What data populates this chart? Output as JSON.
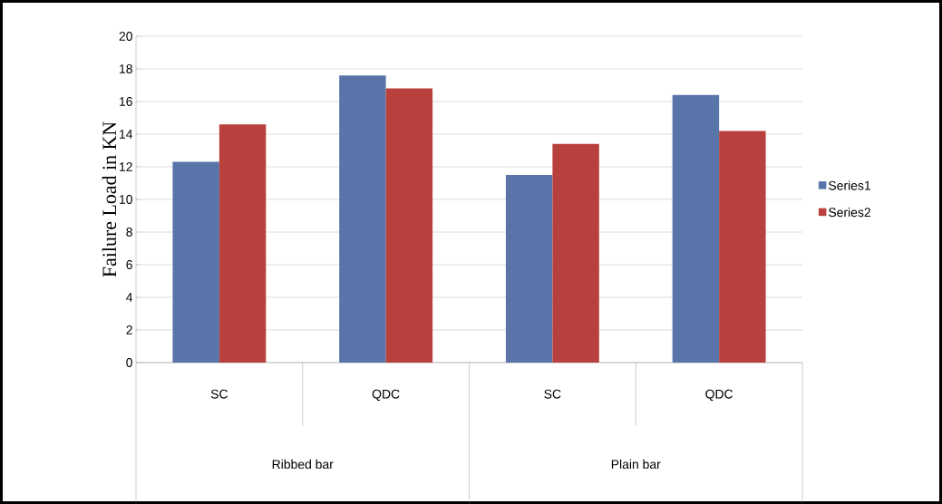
{
  "chart_data": {
    "type": "bar",
    "ylabel": "Failure Load in KN",
    "categories": [
      "SC",
      "QDC",
      "SC",
      "QDC"
    ],
    "series": [
      {
        "name": "Series1",
        "color": "#5874a8",
        "values": [
          12.3,
          17.6,
          11.5,
          16.4
        ]
      },
      {
        "name": "Series2",
        "color": "#b9413d",
        "values": [
          14.6,
          16.8,
          13.4,
          14.2
        ]
      }
    ],
    "ylim": [
      0,
      20
    ],
    "yticks": [
      0,
      2,
      4,
      6,
      8,
      10,
      12,
      14,
      16,
      18,
      20
    ],
    "grid": "y",
    "legend": "right",
    "annotations": [
      "Ribbed bar",
      "Plain bar"
    ]
  }
}
